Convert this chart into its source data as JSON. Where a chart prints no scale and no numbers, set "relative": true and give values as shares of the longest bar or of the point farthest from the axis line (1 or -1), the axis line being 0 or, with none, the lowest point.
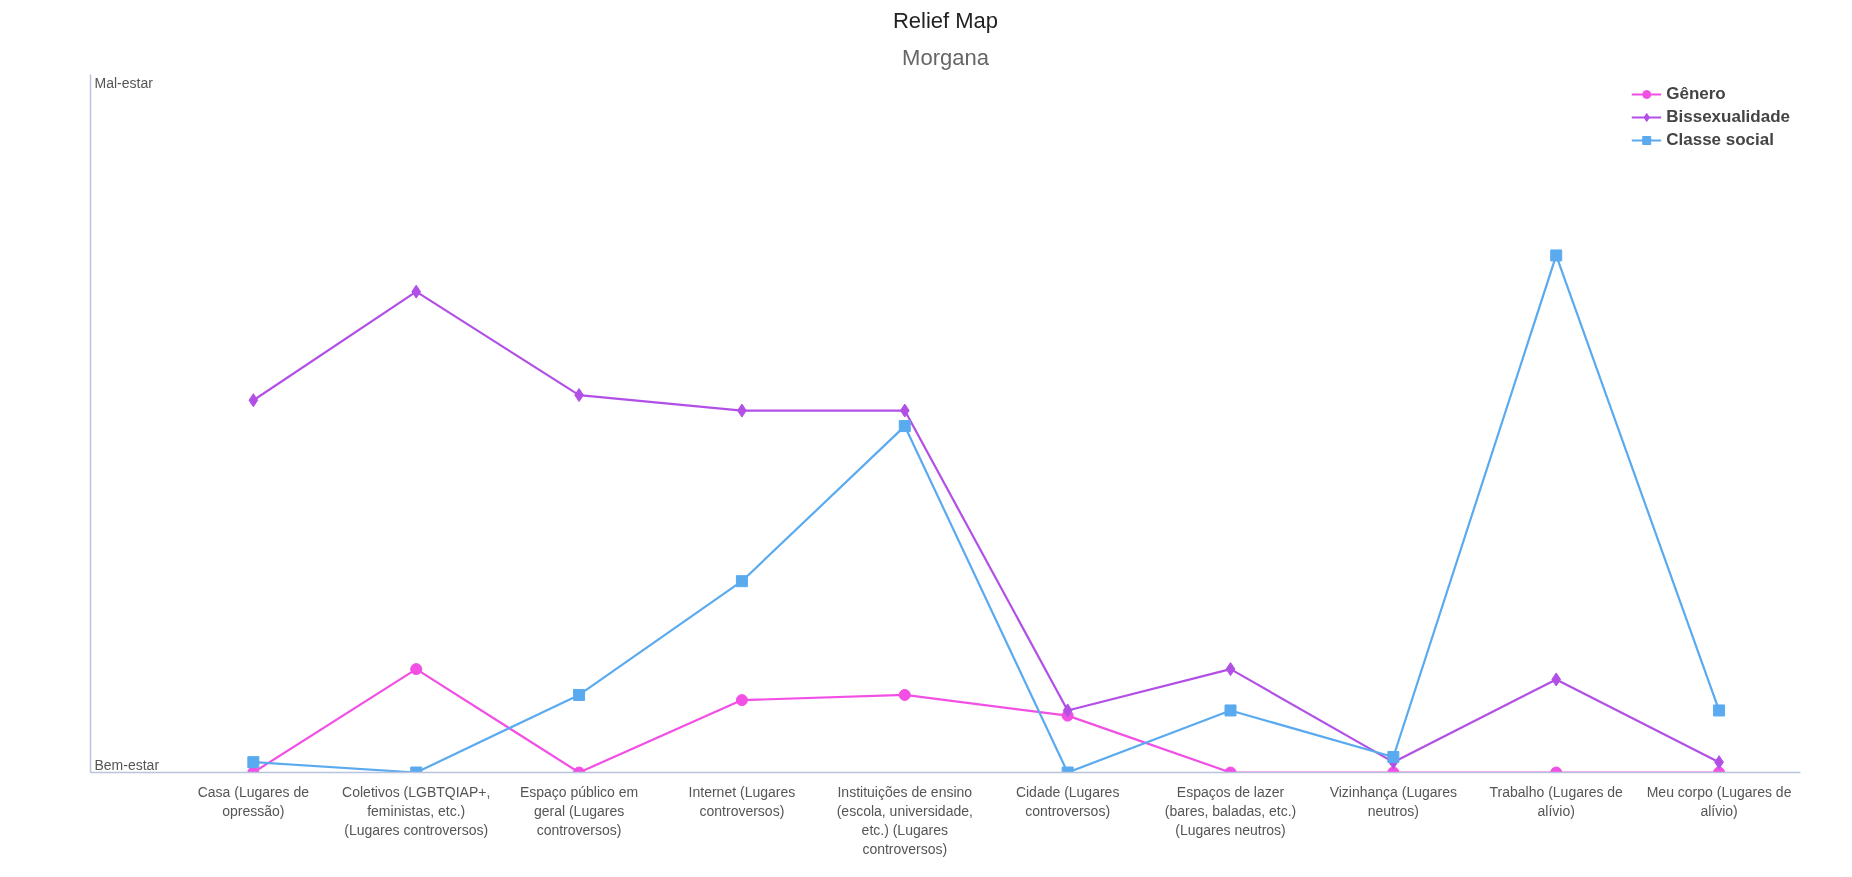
{
  "chart_data": {
    "type": "line",
    "title": "Relief Map",
    "subtitle": "Morgana",
    "categories": [
      "Casa (Lugares de opressão)",
      "Coletivos (LGBTQIAP+, feministas, etc.) (Lugares controversos)",
      "Espaço público em geral (Lugares controversos)",
      "Internet (Lugares controversos)",
      "Instituições de ensino (escola, universidade, etc.) (Lugares controversos)",
      "Cidade (Lugares controversos)",
      "Espaços de lazer (bares, baladas, etc.) (Lugares neutros)",
      "Vizinhança (Lugares neutros)",
      "Trabalho (Lugares de alívio)",
      "Meu corpo (Lugares de alívio)"
    ],
    "series": [
      {
        "name": "Gênero",
        "color": "#f24fe4",
        "marker": "circle",
        "values": [
          0,
          0.2,
          0,
          0.14,
          0.15,
          0.11,
          0,
          0,
          0,
          0
        ]
      },
      {
        "name": "Bissexualidade",
        "color": "#b24fe6",
        "marker": "diamond",
        "values": [
          0.72,
          0.93,
          0.73,
          0.7,
          0.7,
          0.12,
          0.2,
          0.02,
          0.18,
          0.02
        ]
      },
      {
        "name": "Classe social",
        "color": "#5aaaf0",
        "marker": "square",
        "values": [
          0.02,
          0,
          0.15,
          0.37,
          0.67,
          0,
          0.12,
          0.03,
          1,
          0.12
        ]
      }
    ],
    "relative": true,
    "annotations": [
      "Bem-estar",
      "Mal-estar"
    ],
    "grid": false,
    "legend": "top right",
    "line_style": "solid"
  }
}
